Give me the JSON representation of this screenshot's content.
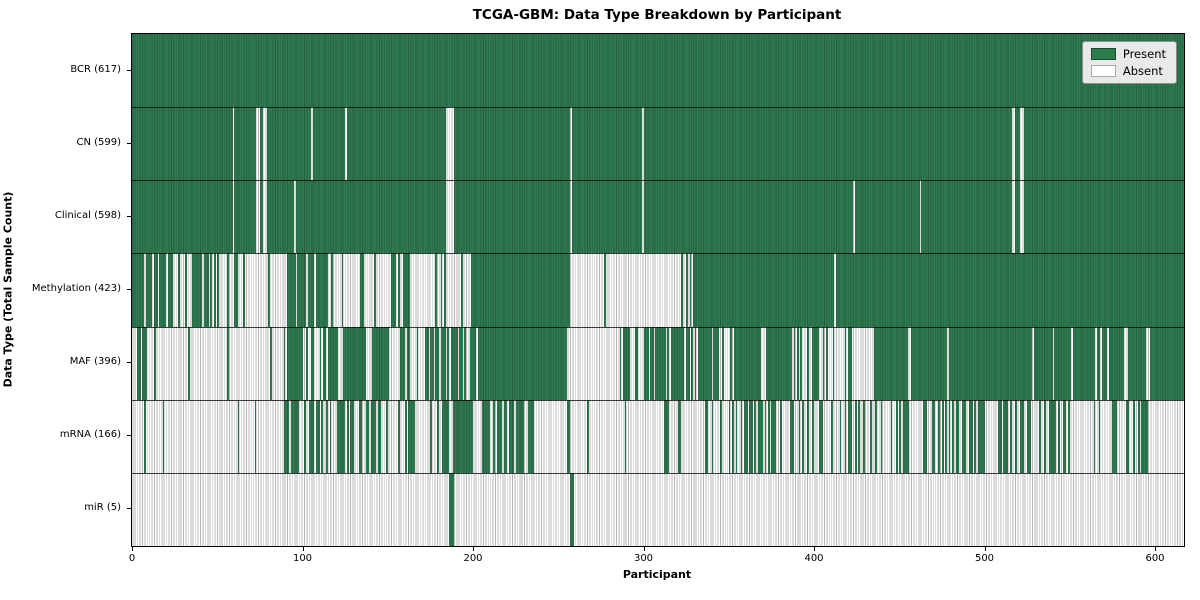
{
  "title": "TCGA-GBM: Data Type Breakdown by Participant",
  "xlabel": "Participant",
  "ylabel": "Data Type (Total Sample Count)",
  "legend": {
    "present_label": "Present",
    "absent_label": "Absent"
  },
  "colors": {
    "present": "#2d7c50",
    "present_edge": "#1a4d2e",
    "absent": "#ffffff",
    "absent_edge": "#aaaaaa",
    "legend_bg": "#e9e9e9"
  },
  "chart_data": {
    "type": "heatmap",
    "title": "TCGA-GBM: Data Type Breakdown by Participant",
    "xlabel": "Participant",
    "ylabel": "Data Type (Total Sample Count)",
    "x_ticks": [
      0,
      100,
      200,
      300,
      400,
      500,
      600
    ],
    "x_max": 617,
    "states": {
      "present": 1,
      "absent": 0
    },
    "rows": [
      {
        "label": "BCR",
        "total": 617,
        "segments": [
          [
            0,
            617,
            1
          ]
        ]
      },
      {
        "label": "CN",
        "total": 599,
        "segments": [
          [
            0,
            59,
            1
          ],
          [
            59,
            60,
            0
          ],
          [
            60,
            73,
            1
          ],
          [
            73,
            75,
            0
          ],
          [
            75,
            77,
            1
          ],
          [
            77,
            79,
            0
          ],
          [
            79,
            105,
            1
          ],
          [
            105,
            106,
            0
          ],
          [
            106,
            125,
            1
          ],
          [
            125,
            126,
            0
          ],
          [
            126,
            184,
            1
          ],
          [
            184,
            189,
            0
          ],
          [
            189,
            257,
            1
          ],
          [
            257,
            258,
            0
          ],
          [
            258,
            299,
            1
          ],
          [
            299,
            300,
            0
          ],
          [
            300,
            516,
            1
          ],
          [
            516,
            518,
            0
          ],
          [
            518,
            521,
            1
          ],
          [
            521,
            523,
            0
          ],
          [
            523,
            617,
            1
          ]
        ]
      },
      {
        "label": "Clinical",
        "total": 598,
        "segments": [
          [
            0,
            59,
            1
          ],
          [
            59,
            60,
            0
          ],
          [
            60,
            73,
            1
          ],
          [
            73,
            75,
            0
          ],
          [
            75,
            77,
            1
          ],
          [
            77,
            79,
            0
          ],
          [
            79,
            95,
            1
          ],
          [
            95,
            96,
            0
          ],
          [
            96,
            184,
            1
          ],
          [
            184,
            189,
            0
          ],
          [
            189,
            257,
            1
          ],
          [
            257,
            258,
            0
          ],
          [
            258,
            299,
            1
          ],
          [
            299,
            300,
            0
          ],
          [
            300,
            423,
            1
          ],
          [
            423,
            424,
            0
          ],
          [
            424,
            462,
            1
          ],
          [
            462,
            463,
            0
          ],
          [
            463,
            516,
            1
          ],
          [
            516,
            518,
            0
          ],
          [
            518,
            521,
            1
          ],
          [
            521,
            523,
            0
          ],
          [
            523,
            617,
            1
          ]
        ]
      },
      {
        "label": "Methylation",
        "total": 423,
        "segments": [
          [
            0,
            7,
            1
          ],
          [
            7,
            8,
            0
          ],
          [
            8,
            12,
            1
          ],
          [
            12,
            13,
            0
          ],
          [
            13,
            15,
            1
          ],
          [
            15,
            16,
            0
          ],
          [
            16,
            20,
            1
          ],
          [
            20,
            21,
            0
          ],
          [
            21,
            24,
            1
          ],
          [
            24,
            25,
            0
          ],
          [
            25,
            27,
            0
          ],
          [
            27,
            28,
            1
          ],
          [
            28,
            31,
            0
          ],
          [
            31,
            32,
            1
          ],
          [
            32,
            35,
            0
          ],
          [
            35,
            41,
            1
          ],
          [
            41,
            42,
            0
          ],
          [
            42,
            45,
            1
          ],
          [
            45,
            46,
            0
          ],
          [
            46,
            47,
            1
          ],
          [
            47,
            48,
            0
          ],
          [
            48,
            49,
            1
          ],
          [
            49,
            63,
            0.5
          ],
          [
            63,
            65,
            0
          ],
          [
            65,
            66,
            1
          ],
          [
            66,
            80,
            0
          ],
          [
            80,
            81,
            1
          ],
          [
            81,
            91,
            0
          ],
          [
            91,
            96,
            1
          ],
          [
            96,
            97,
            0
          ],
          [
            97,
            102,
            1
          ],
          [
            102,
            103,
            0
          ],
          [
            103,
            107,
            1
          ],
          [
            107,
            108,
            0
          ],
          [
            108,
            115,
            1
          ],
          [
            115,
            129,
            0.25
          ],
          [
            129,
            163,
            0.55
          ],
          [
            163,
            199,
            0.12
          ],
          [
            199,
            257,
            1
          ],
          [
            257,
            320,
            0.02
          ],
          [
            320,
            330,
            0.5
          ],
          [
            330,
            412,
            1
          ],
          [
            412,
            413,
            0
          ],
          [
            413,
            617,
            0.995
          ]
        ]
      },
      {
        "label": "MAF",
        "total": 396,
        "segments": [
          [
            0,
            6,
            0.2
          ],
          [
            6,
            8,
            1
          ],
          [
            8,
            25,
            0.1
          ],
          [
            25,
            89,
            0.02
          ],
          [
            89,
            100,
            0.85
          ],
          [
            100,
            104,
            0.3
          ],
          [
            104,
            110,
            0.5
          ],
          [
            110,
            119,
            0.9
          ],
          [
            119,
            129,
            0.4
          ],
          [
            129,
            137,
            0.9
          ],
          [
            137,
            141,
            0.1
          ],
          [
            141,
            151,
            0.9
          ],
          [
            151,
            157,
            0.3
          ],
          [
            157,
            163,
            0.9
          ],
          [
            163,
            170,
            0.3
          ],
          [
            170,
            182,
            0.7
          ],
          [
            182,
            206,
            0.85
          ],
          [
            206,
            255,
            0.95
          ],
          [
            255,
            286,
            0.06
          ],
          [
            286,
            300,
            0.35
          ],
          [
            300,
            340,
            0.8
          ],
          [
            340,
            353,
            0.25
          ],
          [
            353,
            370,
            0.95
          ],
          [
            370,
            372,
            0
          ],
          [
            372,
            387,
            1
          ],
          [
            387,
            401,
            0.6
          ],
          [
            401,
            413,
            0.75
          ],
          [
            413,
            436,
            0.3
          ],
          [
            436,
            617,
            0.92
          ]
        ]
      },
      {
        "label": "mRNA",
        "total": 166,
        "segments": [
          [
            0,
            7,
            0
          ],
          [
            7,
            8,
            1
          ],
          [
            8,
            23,
            0.05
          ],
          [
            23,
            26,
            0.6
          ],
          [
            26,
            89,
            0.02
          ],
          [
            89,
            107,
            0.5
          ],
          [
            107,
            112,
            0.7
          ],
          [
            112,
            121,
            0.2
          ],
          [
            121,
            127,
            0.8
          ],
          [
            127,
            137,
            0.3
          ],
          [
            137,
            151,
            0.6
          ],
          [
            151,
            160,
            0.1
          ],
          [
            160,
            165,
            0.8
          ],
          [
            165,
            182,
            0.2
          ],
          [
            182,
            198,
            0.85
          ],
          [
            198,
            204,
            0.3
          ],
          [
            204,
            237,
            0.7
          ],
          [
            237,
            255,
            0.05
          ],
          [
            255,
            258,
            0.6
          ],
          [
            258,
            311,
            0.04
          ],
          [
            311,
            350,
            0.15
          ],
          [
            350,
            380,
            0.45
          ],
          [
            380,
            450,
            0.35
          ],
          [
            450,
            550,
            0.42
          ],
          [
            550,
            590,
            0.25
          ],
          [
            590,
            596,
            0.9
          ],
          [
            596,
            617,
            0.05
          ]
        ]
      },
      {
        "label": "miR",
        "total": 5,
        "segments": [
          [
            0,
            186,
            0
          ],
          [
            186,
            189,
            1
          ],
          [
            189,
            257,
            0
          ],
          [
            257,
            259,
            1
          ],
          [
            259,
            617,
            0
          ]
        ]
      }
    ]
  }
}
